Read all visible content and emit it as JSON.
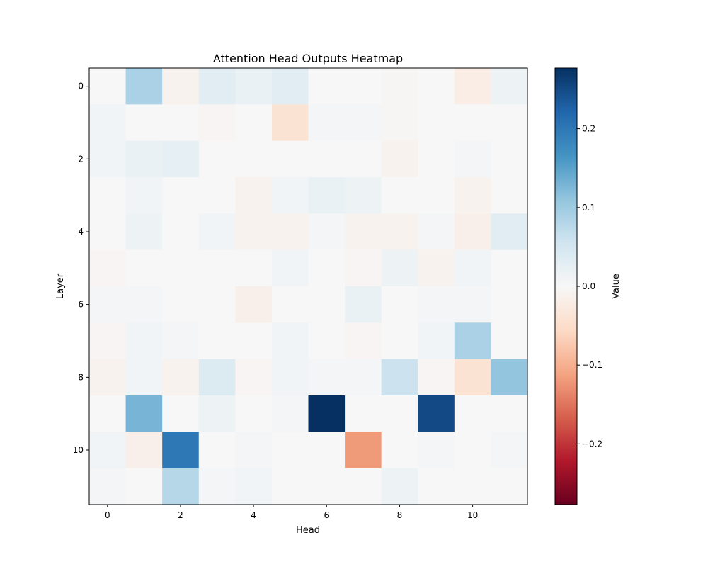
{
  "chart_data": {
    "type": "heatmap",
    "title": "Attention Head Outputs Heatmap",
    "xlabel": "Head",
    "ylabel": "Layer",
    "x_ticks": [
      0,
      2,
      4,
      6,
      8,
      10
    ],
    "y_ticks": [
      0,
      2,
      4,
      6,
      8,
      10
    ],
    "colormap": "RdBu",
    "vmin": -0.277,
    "vmax": 0.277,
    "colorbar": {
      "label": "Value",
      "ticks": [
        0.2,
        0.1,
        0.0,
        -0.1,
        -0.2
      ],
      "tick_labels": [
        "0.2",
        "0.1",
        "0.0",
        "−0.1",
        "−0.2"
      ]
    },
    "values": [
      [
        0,
        0.09,
        -0.01,
        0.03,
        0.02,
        0.03,
        0,
        0,
        -0.003,
        0,
        -0.02,
        0.015
      ],
      [
        0.01,
        0,
        0,
        -0.005,
        0,
        -0.04,
        0.005,
        0.005,
        -0.003,
        0,
        0,
        0
      ],
      [
        0.01,
        0.02,
        0.025,
        0,
        0,
        0,
        0,
        0,
        -0.01,
        0,
        0.005,
        0
      ],
      [
        0,
        0.01,
        0,
        0,
        -0.01,
        0.01,
        0.02,
        0.015,
        0,
        0,
        -0.01,
        0
      ],
      [
        0,
        0.015,
        0,
        0.01,
        -0.01,
        -0.01,
        0.005,
        -0.01,
        -0.01,
        0.005,
        -0.015,
        0.03
      ],
      [
        -0.005,
        0,
        0,
        0,
        0,
        0.01,
        0,
        -0.005,
        0.015,
        -0.01,
        0.01,
        0
      ],
      [
        0.005,
        0.005,
        0,
        0,
        -0.015,
        0,
        0,
        0.02,
        0,
        0.005,
        0.005,
        0
      ],
      [
        -0.005,
        0.01,
        0.005,
        0,
        0,
        0.01,
        0,
        -0.005,
        0,
        0.01,
        0.09,
        0
      ],
      [
        -0.01,
        0.01,
        -0.01,
        0.04,
        -0.005,
        0.01,
        0.005,
        0.005,
        0.06,
        -0.005,
        -0.04,
        0.11
      ],
      [
        0,
        0.13,
        0,
        0.015,
        0,
        0.005,
        0.28,
        0,
        0,
        0.25,
        0,
        0
      ],
      [
        0.01,
        -0.015,
        0.2,
        0,
        0.005,
        0,
        0,
        -0.12,
        0,
        0.005,
        0,
        0.005
      ],
      [
        0.005,
        0,
        0.08,
        0.005,
        0.01,
        0,
        0,
        0,
        0.015,
        0,
        0,
        0
      ]
    ]
  }
}
